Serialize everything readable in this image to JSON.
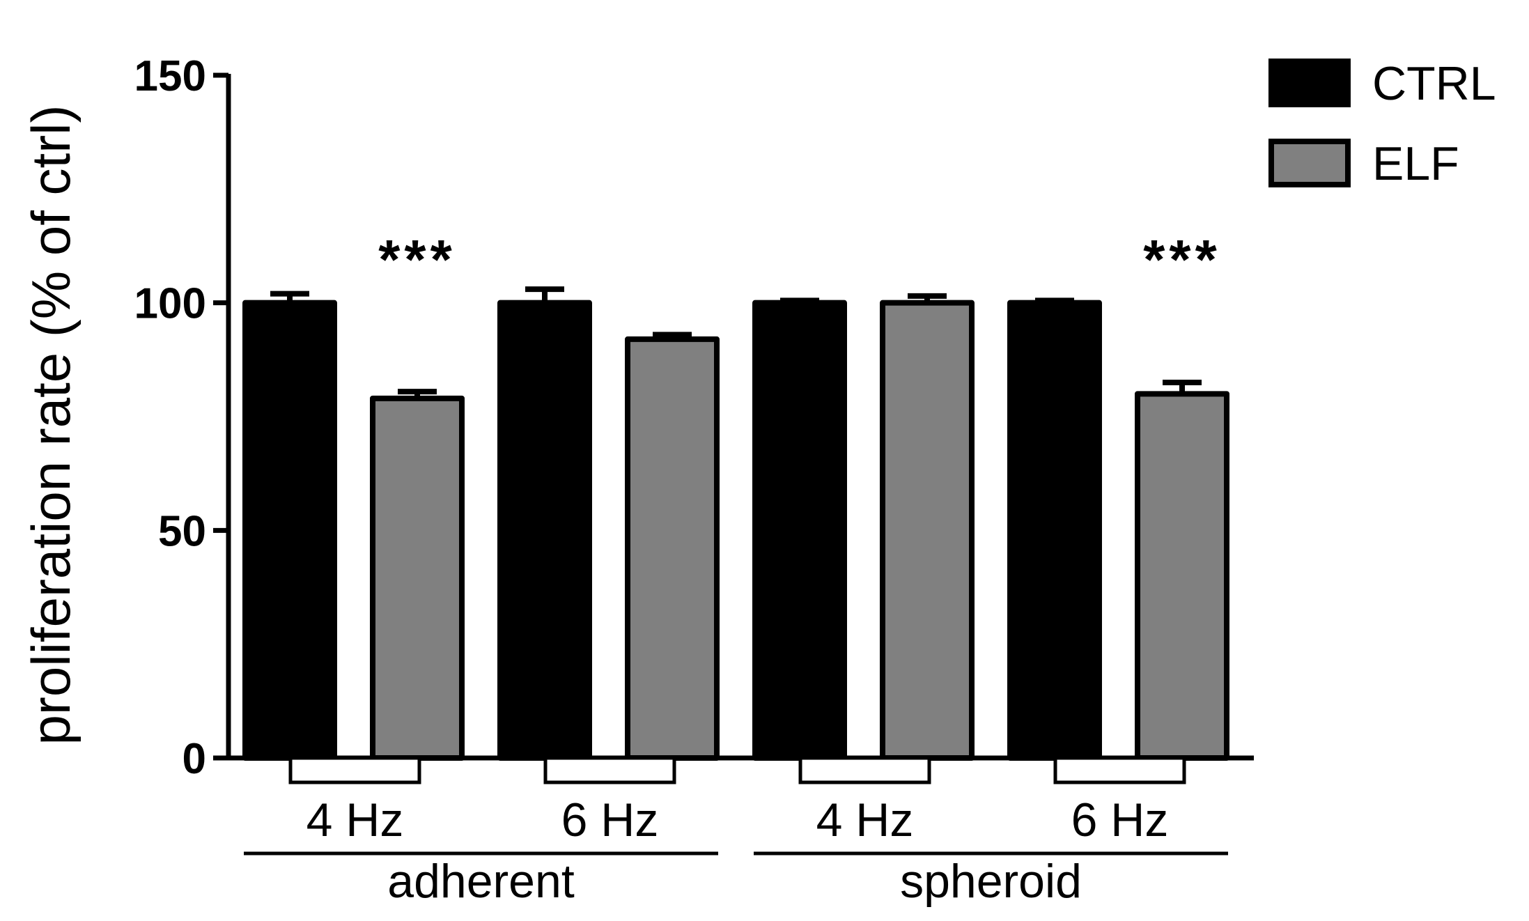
{
  "chart_data": {
    "type": "bar",
    "ylabel": "proliferation rate (% of ctrl)",
    "xlabel": "",
    "ylim": [
      0,
      150
    ],
    "yticks": [
      "0",
      "50",
      "100",
      "150"
    ],
    "categories": [
      "4 Hz",
      "6 Hz",
      "4 Hz",
      "6 Hz"
    ],
    "groups": [
      {
        "label": "adherent",
        "categories": [
          0,
          1
        ]
      },
      {
        "label": "spheroid",
        "categories": [
          2,
          3
        ]
      }
    ],
    "series": [
      {
        "name": "CTRL",
        "color": "#000000",
        "values": [
          100,
          100,
          100,
          100
        ],
        "errors": [
          2,
          3,
          0.5,
          0.5
        ]
      },
      {
        "name": "ELF",
        "color": "#808080",
        "values": [
          79,
          92,
          100,
          80
        ],
        "errors": [
          1.5,
          1,
          1.5,
          2.5
        ]
      }
    ],
    "annotations": [
      {
        "text": "***",
        "category": 0,
        "series": "ELF"
      },
      {
        "text": "***",
        "category": 3,
        "series": "ELF"
      }
    ],
    "legend_position": "top-right",
    "grid": false
  }
}
